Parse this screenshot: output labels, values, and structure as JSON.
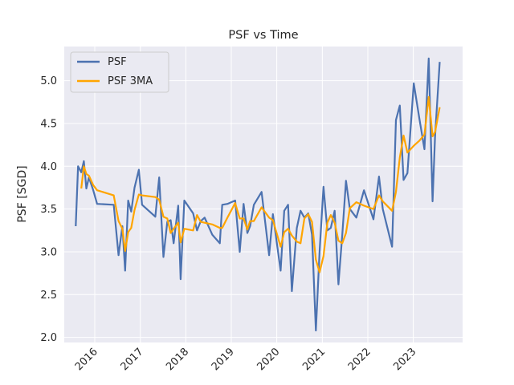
{
  "chart_data": {
    "type": "line",
    "title": "PSF vs Time",
    "xlabel": "",
    "ylabel": "PSF [SGD]",
    "x_ticks": [
      "2016",
      "2017",
      "2018",
      "2019",
      "2020",
      "2021",
      "2022",
      "2023"
    ],
    "y_ticks": [
      "2.0",
      "2.5",
      "3.0",
      "3.5",
      "4.0",
      "4.5",
      "5.0"
    ],
    "xlim": [
      "2015-05-01",
      "2024-02-01"
    ],
    "ylim": [
      1.94,
      5.4
    ],
    "grid": true,
    "legend_position": "top-left",
    "series": [
      {
        "name": "PSF",
        "color": "#4c72b0",
        "points": [
          [
            "2015-08-01",
            3.3
          ],
          [
            "2015-08-20",
            4.0
          ],
          [
            "2015-09-15",
            3.93
          ],
          [
            "2015-10-05",
            4.06
          ],
          [
            "2015-10-25",
            3.74
          ],
          [
            "2015-11-15",
            3.87
          ],
          [
            "2015-12-20",
            3.72
          ],
          [
            "2016-01-20",
            3.56
          ],
          [
            "2016-06-01",
            3.55
          ],
          [
            "2016-07-10",
            2.96
          ],
          [
            "2016-08-10",
            3.3
          ],
          [
            "2016-09-01",
            2.78
          ],
          [
            "2016-09-25",
            3.6
          ],
          [
            "2016-10-20",
            3.47
          ],
          [
            "2016-11-15",
            3.75
          ],
          [
            "2016-12-20",
            3.96
          ],
          [
            "2017-01-15",
            3.55
          ],
          [
            "2017-05-01",
            3.41
          ],
          [
            "2017-06-01",
            3.87
          ],
          [
            "2017-07-05",
            2.94
          ],
          [
            "2017-08-05",
            3.35
          ],
          [
            "2017-09-01",
            3.37
          ],
          [
            "2017-09-25",
            3.1
          ],
          [
            "2017-11-01",
            3.54
          ],
          [
            "2017-11-20",
            2.68
          ],
          [
            "2017-12-20",
            3.6
          ],
          [
            "2018-03-01",
            3.45
          ],
          [
            "2018-04-01",
            3.25
          ],
          [
            "2018-05-01",
            3.36
          ],
          [
            "2018-06-01",
            3.4
          ],
          [
            "2018-08-01",
            3.2
          ],
          [
            "2018-10-01",
            3.1
          ],
          [
            "2018-10-20",
            3.55
          ],
          [
            "2018-12-01",
            3.56
          ],
          [
            "2019-02-01",
            3.6
          ],
          [
            "2019-03-10",
            3.0
          ],
          [
            "2019-04-10",
            3.56
          ],
          [
            "2019-05-10",
            3.22
          ],
          [
            "2019-06-01",
            3.3
          ],
          [
            "2019-07-01",
            3.55
          ],
          [
            "2019-09-01",
            3.7
          ],
          [
            "2019-11-01",
            2.96
          ],
          [
            "2019-12-01",
            3.44
          ],
          [
            "2020-02-01",
            2.78
          ],
          [
            "2020-03-01",
            3.48
          ],
          [
            "2020-04-01",
            3.55
          ],
          [
            "2020-05-01",
            2.54
          ],
          [
            "2020-06-10",
            3.28
          ],
          [
            "2020-07-10",
            3.48
          ],
          [
            "2020-08-10",
            3.4
          ],
          [
            "2020-09-10",
            3.45
          ],
          [
            "2020-10-10",
            3.2
          ],
          [
            "2020-11-10",
            2.08
          ],
          [
            "2020-12-10",
            3.0
          ],
          [
            "2021-01-10",
            3.76
          ],
          [
            "2021-02-10",
            3.25
          ],
          [
            "2021-03-10",
            3.28
          ],
          [
            "2021-04-10",
            3.48
          ],
          [
            "2021-05-10",
            2.62
          ],
          [
            "2021-06-10",
            3.2
          ],
          [
            "2021-07-10",
            3.83
          ],
          [
            "2021-08-10",
            3.5
          ],
          [
            "2021-10-01",
            3.4
          ],
          [
            "2021-12-01",
            3.72
          ],
          [
            "2022-02-15",
            3.38
          ],
          [
            "2022-04-01",
            3.88
          ],
          [
            "2022-05-01",
            3.5
          ],
          [
            "2022-07-15",
            3.06
          ],
          [
            "2022-08-15",
            4.54
          ],
          [
            "2022-09-15",
            4.71
          ],
          [
            "2022-10-15",
            3.84
          ],
          [
            "2022-11-15",
            3.92
          ],
          [
            "2023-01-05",
            4.97
          ],
          [
            "2023-02-20",
            4.55
          ],
          [
            "2023-04-01",
            4.2
          ],
          [
            "2023-05-05",
            5.26
          ],
          [
            "2023-06-05",
            3.59
          ],
          [
            "2023-06-25",
            4.35
          ],
          [
            "2023-08-01",
            5.22
          ]
        ]
      },
      {
        "name": "PSF 3MA",
        "color": "#ffa500",
        "points": [
          [
            "2015-09-15",
            3.74
          ],
          [
            "2015-10-05",
            4.0
          ],
          [
            "2015-10-25",
            3.91
          ],
          [
            "2015-11-15",
            3.89
          ],
          [
            "2015-12-20",
            3.78
          ],
          [
            "2016-01-20",
            3.72
          ],
          [
            "2016-06-01",
            3.66
          ],
          [
            "2016-07-10",
            3.36
          ],
          [
            "2016-08-10",
            3.27
          ],
          [
            "2016-09-01",
            3.01
          ],
          [
            "2016-09-25",
            3.23
          ],
          [
            "2016-10-20",
            3.28
          ],
          [
            "2016-11-15",
            3.49
          ],
          [
            "2016-12-20",
            3.67
          ],
          [
            "2017-01-15",
            3.66
          ],
          [
            "2017-05-01",
            3.64
          ],
          [
            "2017-06-01",
            3.61
          ],
          [
            "2017-07-05",
            3.41
          ],
          [
            "2017-08-05",
            3.39
          ],
          [
            "2017-09-01",
            3.22
          ],
          [
            "2017-09-25",
            3.27
          ],
          [
            "2017-11-01",
            3.34
          ],
          [
            "2017-11-20",
            3.11
          ],
          [
            "2017-12-20",
            3.27
          ],
          [
            "2018-03-01",
            3.25
          ],
          [
            "2018-04-01",
            3.43
          ],
          [
            "2018-05-01",
            3.35
          ],
          [
            "2018-06-01",
            3.34
          ],
          [
            "2018-08-01",
            3.32
          ],
          [
            "2018-10-01",
            3.28
          ],
          [
            "2018-10-20",
            3.28
          ],
          [
            "2018-12-01",
            3.4
          ],
          [
            "2019-02-01",
            3.57
          ],
          [
            "2019-03-10",
            3.39
          ],
          [
            "2019-04-10",
            3.39
          ],
          [
            "2019-05-10",
            3.26
          ],
          [
            "2019-06-01",
            3.36
          ],
          [
            "2019-07-01",
            3.36
          ],
          [
            "2019-09-01",
            3.52
          ],
          [
            "2019-11-01",
            3.4
          ],
          [
            "2019-12-01",
            3.37
          ],
          [
            "2020-02-01",
            3.06
          ],
          [
            "2020-03-01",
            3.23
          ],
          [
            "2020-04-01",
            3.27
          ],
          [
            "2020-05-01",
            3.19
          ],
          [
            "2020-06-10",
            3.12
          ],
          [
            "2020-07-10",
            3.1
          ],
          [
            "2020-08-10",
            3.39
          ],
          [
            "2020-09-10",
            3.44
          ],
          [
            "2020-10-10",
            3.35
          ],
          [
            "2020-11-10",
            2.91
          ],
          [
            "2020-12-10",
            2.76
          ],
          [
            "2021-01-10",
            2.95
          ],
          [
            "2021-02-10",
            3.34
          ],
          [
            "2021-03-10",
            3.43
          ],
          [
            "2021-04-10",
            3.34
          ],
          [
            "2021-05-10",
            3.13
          ],
          [
            "2021-06-10",
            3.1
          ],
          [
            "2021-07-10",
            3.22
          ],
          [
            "2021-08-10",
            3.51
          ],
          [
            "2021-10-01",
            3.58
          ],
          [
            "2021-12-01",
            3.54
          ],
          [
            "2022-02-15",
            3.5
          ],
          [
            "2022-04-01",
            3.66
          ],
          [
            "2022-05-01",
            3.59
          ],
          [
            "2022-07-15",
            3.48
          ],
          [
            "2022-08-15",
            3.7
          ],
          [
            "2022-09-15",
            4.1
          ],
          [
            "2022-10-15",
            4.36
          ],
          [
            "2022-11-15",
            4.16
          ],
          [
            "2023-01-05",
            4.24
          ],
          [
            "2023-02-20",
            4.3
          ],
          [
            "2023-04-01",
            4.37
          ],
          [
            "2023-05-05",
            4.81
          ],
          [
            "2023-06-05",
            4.35
          ],
          [
            "2023-06-25",
            4.4
          ],
          [
            "2023-08-01",
            4.69
          ]
        ]
      }
    ]
  }
}
